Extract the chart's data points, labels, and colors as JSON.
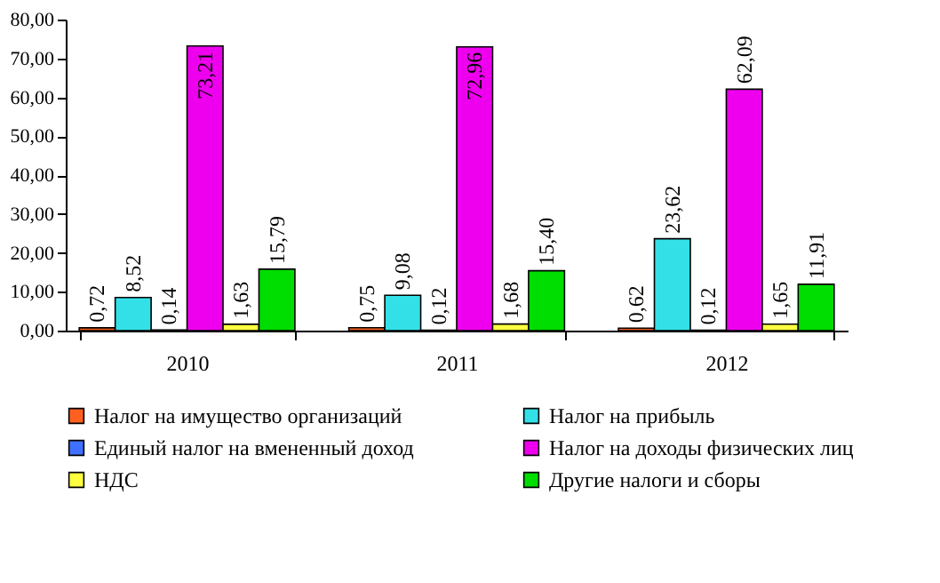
{
  "chart_data": {
    "type": "bar",
    "categories": [
      "2010",
      "2011",
      "2012"
    ],
    "series": [
      {
        "name": "Налог на имущество организаций",
        "color": "#ff6020",
        "values": [
          0.72,
          0.75,
          0.62
        ],
        "value_labels": [
          "0,72",
          "0,75",
          "0,62"
        ]
      },
      {
        "name": "Налог на прибыль",
        "color": "#33e0e8",
        "values": [
          8.52,
          9.08,
          23.62
        ],
        "value_labels": [
          "8,52",
          "9,08",
          "23,62"
        ]
      },
      {
        "name": "Единый налог на вмененный доход",
        "color": "#4070ff",
        "values": [
          0.14,
          0.12,
          0.12
        ],
        "value_labels": [
          "0,14",
          "0,12",
          "0,12"
        ]
      },
      {
        "name": "Налог на доходы физических лиц",
        "color": "#ee00ee",
        "values": [
          73.21,
          72.96,
          62.09
        ],
        "value_labels": [
          "73,21",
          "72,96",
          "62,09"
        ]
      },
      {
        "name": "НДС",
        "color": "#ffff40",
        "values": [
          1.63,
          1.68,
          1.65
        ],
        "value_labels": [
          "1,63",
          "1,68",
          "1,65"
        ]
      },
      {
        "name": "Другие налоги и сборы",
        "color": "#00dd00",
        "values": [
          15.79,
          15.4,
          11.91
        ],
        "value_labels": [
          "15,79",
          "15,40",
          "11,91"
        ]
      }
    ],
    "ylim": [
      0,
      80
    ],
    "yticks": [
      {
        "value": 0,
        "label": "0,00"
      },
      {
        "value": 10,
        "label": "10,00"
      },
      {
        "value": 20,
        "label": "20,00"
      },
      {
        "value": 30,
        "label": "30,00"
      },
      {
        "value": 40,
        "label": "40,00"
      },
      {
        "value": 50,
        "label": "50,00"
      },
      {
        "value": 60,
        "label": "60,00"
      },
      {
        "value": 70,
        "label": "70,00"
      },
      {
        "value": 80,
        "label": "80,00"
      }
    ],
    "grid": false,
    "legend": "bottom"
  }
}
